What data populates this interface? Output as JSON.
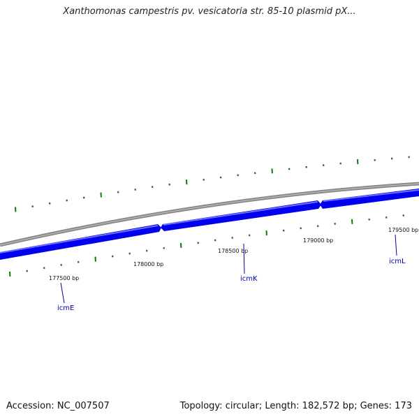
{
  "title": "Xanthomonas campestris pv. vesicatoria str. 85-10 plasmid pX...",
  "footer": {
    "accession": "Accession: NC_007507",
    "summary": "Topology: circular; Length: 182,572 bp; Genes: 173"
  },
  "ticks": [
    {
      "label": "177500 bp"
    },
    {
      "label": "178000 bp"
    },
    {
      "label": "178500 bp"
    },
    {
      "label": "179000 bp"
    },
    {
      "label": "179500 bp"
    }
  ],
  "genes": [
    {
      "name": "icmE"
    },
    {
      "name": "icmK"
    },
    {
      "name": "icmL"
    }
  ],
  "colors": {
    "backbone": "#888888",
    "gene": "#0000ee",
    "gene_highlight": "#6f6fff",
    "gc_marks": "#117711",
    "gene_label": "#0000aa"
  }
}
